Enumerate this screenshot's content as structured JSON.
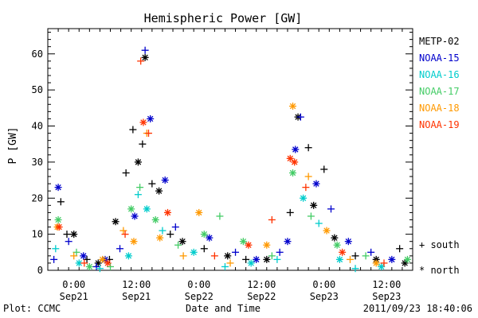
{
  "chart_data": {
    "type": "scatter",
    "title": "Hemispheric Power [GW]",
    "xlabel": "Date and Time",
    "ylabel": "P [GW]",
    "ylim": [
      0,
      67
    ],
    "y_ticks": [
      0,
      10,
      20,
      30,
      40,
      50,
      60
    ],
    "x_range": [
      "2011-09-20T19:00",
      "2011-09-23T17:00"
    ],
    "x_ticks": [
      {
        "t": "2011-09-21T00:00",
        "time": "0:00",
        "date": "Sep21"
      },
      {
        "t": "2011-09-21T12:00",
        "time": "12:00",
        "date": "Sep21"
      },
      {
        "t": "2011-09-22T00:00",
        "time": "0:00",
        "date": "Sep22"
      },
      {
        "t": "2011-09-22T12:00",
        "time": "12:00",
        "date": "Sep22"
      },
      {
        "t": "2011-09-23T00:00",
        "time": "0:00",
        "date": "Sep23"
      },
      {
        "t": "2011-09-23T12:00",
        "time": "12:00",
        "date": "Sep23"
      }
    ],
    "legend": {
      "placement": "right",
      "series_labels": [
        "METP-02",
        "NOAA-15",
        "NOAA-16",
        "NOAA-17",
        "NOAA-18",
        "NOAA-19"
      ],
      "marker_labels": [
        "+ south",
        "* north"
      ]
    },
    "series": [
      {
        "name": "METP-02",
        "color": "#000000",
        "points": [
          {
            "t": "2011-09-20T21:30",
            "y": 19,
            "h": "south"
          },
          {
            "t": "2011-09-20T22:40",
            "y": 10,
            "h": "south"
          },
          {
            "t": "2011-09-21T00:00",
            "y": 10,
            "h": "north"
          },
          {
            "t": "2011-09-21T02:30",
            "y": 3,
            "h": "south"
          },
          {
            "t": "2011-09-21T04:40",
            "y": 2,
            "h": "north"
          },
          {
            "t": "2011-09-21T06:50",
            "y": 3,
            "h": "south"
          },
          {
            "t": "2011-09-21T08:00",
            "y": 13.5,
            "h": "north"
          },
          {
            "t": "2011-09-21T10:00",
            "y": 27,
            "h": "south"
          },
          {
            "t": "2011-09-21T11:20",
            "y": 39,
            "h": "south"
          },
          {
            "t": "2011-09-21T12:20",
            "y": 30,
            "h": "north"
          },
          {
            "t": "2011-09-21T13:10",
            "y": 35,
            "h": "south"
          },
          {
            "t": "2011-09-21T13:40",
            "y": 59,
            "h": "north"
          },
          {
            "t": "2011-09-21T15:00",
            "y": 24,
            "h": "south"
          },
          {
            "t": "2011-09-21T16:20",
            "y": 22,
            "h": "north"
          },
          {
            "t": "2011-09-21T18:30",
            "y": 10,
            "h": "south"
          },
          {
            "t": "2011-09-21T20:50",
            "y": 8,
            "h": "north"
          },
          {
            "t": "2011-09-22T01:00",
            "y": 6,
            "h": "south"
          },
          {
            "t": "2011-09-22T05:30",
            "y": 4,
            "h": "north"
          },
          {
            "t": "2011-09-22T09:00",
            "y": 3,
            "h": "south"
          },
          {
            "t": "2011-09-22T13:00",
            "y": 3,
            "h": "north"
          },
          {
            "t": "2011-09-22T17:30",
            "y": 16,
            "h": "south"
          },
          {
            "t": "2011-09-22T19:00",
            "y": 42.5,
            "h": "north"
          },
          {
            "t": "2011-09-22T21:00",
            "y": 34,
            "h": "south"
          },
          {
            "t": "2011-09-22T22:00",
            "y": 18,
            "h": "north"
          },
          {
            "t": "2011-09-23T00:00",
            "y": 28,
            "h": "south"
          },
          {
            "t": "2011-09-23T02:00",
            "y": 9,
            "h": "north"
          },
          {
            "t": "2011-09-23T06:00",
            "y": 4,
            "h": "south"
          },
          {
            "t": "2011-09-23T10:00",
            "y": 3,
            "h": "north"
          },
          {
            "t": "2011-09-23T14:30",
            "y": 6,
            "h": "south"
          },
          {
            "t": "2011-09-23T15:30",
            "y": 2,
            "h": "north"
          }
        ]
      },
      {
        "name": "NOAA-15",
        "color": "#0000cc",
        "points": [
          {
            "t": "2011-09-20T20:10",
            "y": 3,
            "h": "south"
          },
          {
            "t": "2011-09-20T21:00",
            "y": 23,
            "h": "north"
          },
          {
            "t": "2011-09-20T23:00",
            "y": 8,
            "h": "south"
          },
          {
            "t": "2011-09-21T01:50",
            "y": 4,
            "h": "north"
          },
          {
            "t": "2011-09-21T04:20",
            "y": 1,
            "h": "south"
          },
          {
            "t": "2011-09-21T06:00",
            "y": 3,
            "h": "north"
          },
          {
            "t": "2011-09-21T08:50",
            "y": 6,
            "h": "south"
          },
          {
            "t": "2011-09-21T11:40",
            "y": 15,
            "h": "north"
          },
          {
            "t": "2011-09-21T13:40",
            "y": 61,
            "h": "south"
          },
          {
            "t": "2011-09-21T14:40",
            "y": 42,
            "h": "north"
          },
          {
            "t": "2011-09-21T17:30",
            "y": 25,
            "h": "north"
          },
          {
            "t": "2011-09-21T19:30",
            "y": 12,
            "h": "south"
          },
          {
            "t": "2011-09-22T02:00",
            "y": 9,
            "h": "north"
          },
          {
            "t": "2011-09-22T07:00",
            "y": 5,
            "h": "south"
          },
          {
            "t": "2011-09-22T11:00",
            "y": 3,
            "h": "north"
          },
          {
            "t": "2011-09-22T15:30",
            "y": 5,
            "h": "south"
          },
          {
            "t": "2011-09-22T17:00",
            "y": 8,
            "h": "north"
          },
          {
            "t": "2011-09-22T18:30",
            "y": 33.5,
            "h": "north"
          },
          {
            "t": "2011-09-22T19:30",
            "y": 42.5,
            "h": "south"
          },
          {
            "t": "2011-09-22T22:30",
            "y": 24,
            "h": "north"
          },
          {
            "t": "2011-09-23T01:20",
            "y": 17,
            "h": "south"
          },
          {
            "t": "2011-09-23T04:40",
            "y": 8,
            "h": "north"
          },
          {
            "t": "2011-09-23T09:00",
            "y": 5,
            "h": "south"
          },
          {
            "t": "2011-09-23T13:00",
            "y": 3,
            "h": "north"
          }
        ]
      },
      {
        "name": "NOAA-16",
        "color": "#00cccc",
        "points": [
          {
            "t": "2011-09-20T20:30",
            "y": 6,
            "h": "south"
          },
          {
            "t": "2011-09-21T01:00",
            "y": 2,
            "h": "north"
          },
          {
            "t": "2011-09-21T05:00",
            "y": 0.5,
            "h": "south"
          },
          {
            "t": "2011-09-21T10:30",
            "y": 4,
            "h": "north"
          },
          {
            "t": "2011-09-21T12:20",
            "y": 21,
            "h": "south"
          },
          {
            "t": "2011-09-21T14:00",
            "y": 17,
            "h": "north"
          },
          {
            "t": "2011-09-21T17:00",
            "y": 11,
            "h": "south"
          },
          {
            "t": "2011-09-21T23:00",
            "y": 5,
            "h": "north"
          },
          {
            "t": "2011-09-22T05:00",
            "y": 1,
            "h": "south"
          },
          {
            "t": "2011-09-22T10:00",
            "y": 2,
            "h": "north"
          },
          {
            "t": "2011-09-22T15:00",
            "y": 3,
            "h": "south"
          },
          {
            "t": "2011-09-22T20:00",
            "y": 20,
            "h": "north"
          },
          {
            "t": "2011-09-22T23:00",
            "y": 13,
            "h": "south"
          },
          {
            "t": "2011-09-23T03:00",
            "y": 3,
            "h": "north"
          },
          {
            "t": "2011-09-23T06:00",
            "y": 0.5,
            "h": "south"
          },
          {
            "t": "2011-09-23T11:00",
            "y": 1,
            "h": "north"
          }
        ]
      },
      {
        "name": "NOAA-17",
        "color": "#44cc66",
        "points": [
          {
            "t": "2011-09-20T21:00",
            "y": 14,
            "h": "north"
          },
          {
            "t": "2011-09-21T00:30",
            "y": 5,
            "h": "south"
          },
          {
            "t": "2011-09-21T03:00",
            "y": 1,
            "h": "north"
          },
          {
            "t": "2011-09-21T07:00",
            "y": 1,
            "h": "south"
          },
          {
            "t": "2011-09-21T11:00",
            "y": 17,
            "h": "north"
          },
          {
            "t": "2011-09-21T12:40",
            "y": 23,
            "h": "south"
          },
          {
            "t": "2011-09-21T15:40",
            "y": 14,
            "h": "north"
          },
          {
            "t": "2011-09-21T20:00",
            "y": 7,
            "h": "south"
          },
          {
            "t": "2011-09-22T01:00",
            "y": 10,
            "h": "north"
          },
          {
            "t": "2011-09-22T04:00",
            "y": 15,
            "h": "south"
          },
          {
            "t": "2011-09-22T08:30",
            "y": 8,
            "h": "north"
          },
          {
            "t": "2011-09-22T14:00",
            "y": 4,
            "h": "south"
          },
          {
            "t": "2011-09-22T18:00",
            "y": 27,
            "h": "north"
          },
          {
            "t": "2011-09-22T21:30",
            "y": 15,
            "h": "south"
          },
          {
            "t": "2011-09-23T02:30",
            "y": 7,
            "h": "north"
          },
          {
            "t": "2011-09-23T08:00",
            "y": 4,
            "h": "south"
          },
          {
            "t": "2011-09-23T16:00",
            "y": 3,
            "h": "north"
          }
        ]
      },
      {
        "name": "NOAA-18",
        "color": "#ff9900",
        "points": [
          {
            "t": "2011-09-20T20:50",
            "y": 12,
            "h": "north"
          },
          {
            "t": "2011-09-21T00:00",
            "y": 4,
            "h": "south"
          },
          {
            "t": "2011-09-21T05:30",
            "y": 3,
            "h": "north"
          },
          {
            "t": "2011-09-21T09:30",
            "y": 11,
            "h": "south"
          },
          {
            "t": "2011-09-21T11:30",
            "y": 8,
            "h": "north"
          },
          {
            "t": "2011-09-21T14:00",
            "y": 38,
            "h": "south"
          },
          {
            "t": "2011-09-21T16:30",
            "y": 9,
            "h": "north"
          },
          {
            "t": "2011-09-21T21:00",
            "y": 4,
            "h": "south"
          },
          {
            "t": "2011-09-22T00:00",
            "y": 16,
            "h": "north"
          },
          {
            "t": "2011-09-22T06:00",
            "y": 2,
            "h": "south"
          },
          {
            "t": "2011-09-22T13:00",
            "y": 7,
            "h": "north"
          },
          {
            "t": "2011-09-22T18:00",
            "y": 45.5,
            "h": "north"
          },
          {
            "t": "2011-09-22T21:00",
            "y": 26,
            "h": "south"
          },
          {
            "t": "2011-09-23T00:30",
            "y": 11,
            "h": "north"
          },
          {
            "t": "2011-09-23T05:00",
            "y": 3,
            "h": "south"
          },
          {
            "t": "2011-09-23T10:00",
            "y": 2,
            "h": "north"
          }
        ]
      },
      {
        "name": "NOAA-19",
        "color": "#ff3300",
        "points": [
          {
            "t": "2011-09-20T21:10",
            "y": 12,
            "h": "north"
          },
          {
            "t": "2011-09-21T02:00",
            "y": 2,
            "h": "south"
          },
          {
            "t": "2011-09-21T06:30",
            "y": 2,
            "h": "north"
          },
          {
            "t": "2011-09-21T09:50",
            "y": 10,
            "h": "south"
          },
          {
            "t": "2011-09-21T12:50",
            "y": 58,
            "h": "south"
          },
          {
            "t": "2011-09-21T13:20",
            "y": 41,
            "h": "north"
          },
          {
            "t": "2011-09-21T14:20",
            "y": 38,
            "h": "south"
          },
          {
            "t": "2011-09-21T18:00",
            "y": 16,
            "h": "north"
          },
          {
            "t": "2011-09-22T03:00",
            "y": 4,
            "h": "south"
          },
          {
            "t": "2011-09-22T09:30",
            "y": 7,
            "h": "north"
          },
          {
            "t": "2011-09-22T14:00",
            "y": 14,
            "h": "south"
          },
          {
            "t": "2011-09-22T17:30",
            "y": 31,
            "h": "north"
          },
          {
            "t": "2011-09-22T18:20",
            "y": 30,
            "h": "north"
          },
          {
            "t": "2011-09-22T20:30",
            "y": 23,
            "h": "south"
          },
          {
            "t": "2011-09-23T03:30",
            "y": 5,
            "h": "north"
          },
          {
            "t": "2011-09-23T11:30",
            "y": 2,
            "h": "south"
          }
        ]
      }
    ]
  },
  "footer": {
    "plot_label": "Plot: CCMC",
    "timestamp": "2011/09/23 18:40:06"
  }
}
